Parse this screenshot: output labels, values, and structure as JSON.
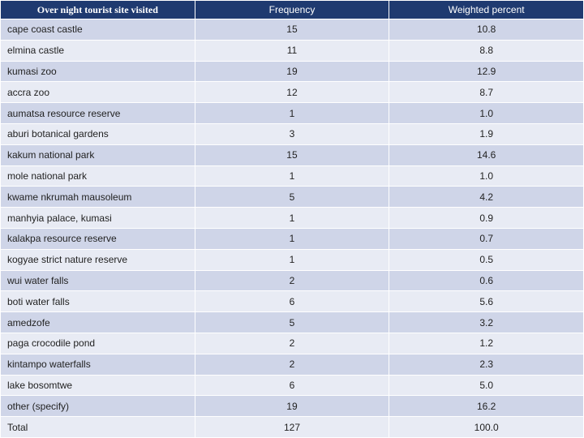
{
  "table": {
    "header": [
      "Over night tourist site visited",
      "Frequency",
      "Weighted percent"
    ],
    "rows": [
      [
        "cape coast castle",
        "15",
        "10.8"
      ],
      [
        "elmina castle",
        "11",
        "8.8"
      ],
      [
        "kumasi zoo",
        "19",
        "12.9"
      ],
      [
        "accra zoo",
        "12",
        "8.7"
      ],
      [
        "aumatsa resource reserve",
        "1",
        "1.0"
      ],
      [
        "aburi botanical gardens",
        "3",
        "1.9"
      ],
      [
        "kakum national park",
        "15",
        "14.6"
      ],
      [
        "mole national park",
        "1",
        "1.0"
      ],
      [
        "kwame nkrumah mausoleum",
        "5",
        "4.2"
      ],
      [
        "manhyia palace, kumasi",
        "1",
        "0.9"
      ],
      [
        "kalakpa resource reserve",
        "1",
        "0.7"
      ],
      [
        "kogyae strict nature reserve",
        "1",
        "0.5"
      ],
      [
        "wui water falls",
        "2",
        "0.6"
      ],
      [
        "boti water falls",
        "6",
        "5.6"
      ],
      [
        "amedzofe",
        "5",
        "3.2"
      ],
      [
        "paga crocodile pond",
        "2",
        "1.2"
      ],
      [
        "kintampo waterfalls",
        "2",
        "2.3"
      ],
      [
        "lake bosomtwe",
        "6",
        "5.0"
      ],
      [
        "other (specify)",
        "19",
        "16.2"
      ],
      [
        "Total",
        "127",
        "100.0"
      ]
    ]
  }
}
